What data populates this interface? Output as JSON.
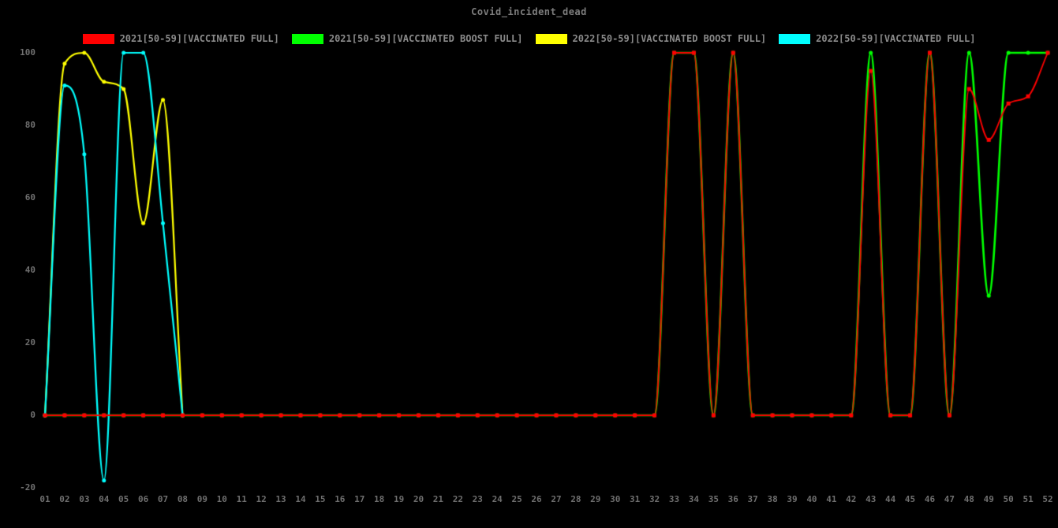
{
  "title": "Covid_incident_dead",
  "legend": {
    "items": [
      {
        "label": "2021[50-59][VACCINATED FULL]",
        "color": "#ff0000"
      },
      {
        "label": "2021[50-59][VACCINATED BOOST FULL]",
        "color": "#00ff00"
      },
      {
        "label": "2022[50-59][VACCINATED BOOST FULL]",
        "color": "#ffff00"
      },
      {
        "label": "2022[50-59][VACCINATED FULL]",
        "color": "#00ffff"
      }
    ]
  },
  "chart_data": {
    "type": "line",
    "title": "Covid_incident_dead",
    "xlabel": "",
    "ylabel": "",
    "ylim": [
      -20,
      100
    ],
    "yticks": [
      100,
      80,
      60,
      40,
      20,
      0,
      -20
    ],
    "grid": false,
    "legend_position": "top",
    "background_color": "#000000",
    "tick_label_color": "#6f6f6f",
    "title_color": "#7d7d7d",
    "x_categories": [
      "01",
      "02",
      "03",
      "04",
      "05",
      "06",
      "07",
      "08",
      "09",
      "10",
      "11",
      "12",
      "13",
      "14",
      "15",
      "16",
      "17",
      "18",
      "19",
      "20",
      "21",
      "22",
      "23",
      "24",
      "25",
      "26",
      "27",
      "28",
      "29",
      "30",
      "31",
      "32",
      "33",
      "34",
      "35",
      "36",
      "37",
      "38",
      "39",
      "40",
      "41",
      "42",
      "43",
      "44",
      "45",
      "46",
      "47",
      "48",
      "49",
      "50",
      "51",
      "52"
    ],
    "series": [
      {
        "name": "2021[50-59][VACCINATED FULL]",
        "color": "#ff0000",
        "marker": "square",
        "values": [
          0,
          0,
          0,
          0,
          0,
          0,
          0,
          0,
          0,
          0,
          0,
          0,
          0,
          0,
          0,
          0,
          0,
          0,
          0,
          0,
          0,
          0,
          0,
          0,
          0,
          0,
          0,
          0,
          0,
          0,
          0,
          0,
          100,
          100,
          0,
          100,
          0,
          0,
          0,
          0,
          0,
          0,
          95,
          0,
          0,
          100,
          0,
          90,
          76,
          86,
          88,
          100
        ]
      },
      {
        "name": "2021[50-59][VACCINATED BOOST FULL]",
        "color": "#00ff00",
        "marker": "dot",
        "values": [
          0,
          0,
          0,
          0,
          0,
          0,
          0,
          0,
          0,
          0,
          0,
          0,
          0,
          0,
          0,
          0,
          0,
          0,
          0,
          0,
          0,
          0,
          0,
          0,
          0,
          0,
          0,
          0,
          0,
          0,
          0,
          0,
          100,
          100,
          0,
          100,
          0,
          0,
          0,
          0,
          0,
          0,
          100,
          0,
          0,
          100,
          0,
          100,
          33,
          100,
          100,
          100
        ]
      },
      {
        "name": "2022[50-59][VACCINATED BOOST FULL]",
        "color": "#ffff00",
        "marker": "dot",
        "values": [
          0,
          97,
          100,
          92,
          90,
          53,
          87,
          0,
          null,
          null,
          null,
          null,
          null,
          null,
          null,
          null,
          null,
          null,
          null,
          null,
          null,
          null,
          null,
          null,
          null,
          null,
          null,
          null,
          null,
          null,
          null,
          null,
          null,
          null,
          null,
          null,
          null,
          null,
          null,
          null,
          null,
          null,
          null,
          null,
          null,
          null,
          null,
          null,
          null,
          null,
          null,
          null
        ]
      },
      {
        "name": "2022[50-59][VACCINATED FULL]",
        "color": "#00ffff",
        "marker": "dot",
        "values": [
          0,
          91,
          72,
          -18,
          100,
          100,
          53,
          0,
          null,
          null,
          null,
          null,
          null,
          null,
          null,
          null,
          null,
          null,
          null,
          null,
          null,
          null,
          null,
          null,
          null,
          null,
          null,
          null,
          null,
          null,
          null,
          null,
          null,
          null,
          null,
          null,
          null,
          null,
          null,
          null,
          null,
          null,
          null,
          null,
          null,
          null,
          null,
          null,
          null,
          null,
          null,
          null
        ]
      }
    ]
  }
}
